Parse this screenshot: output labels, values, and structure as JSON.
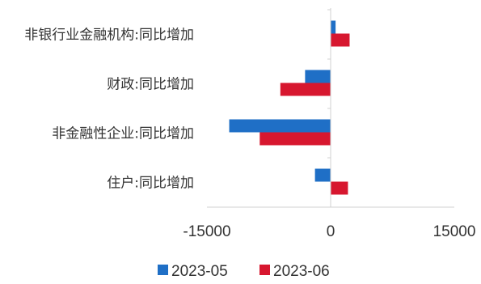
{
  "chart_data": {
    "type": "bar",
    "orientation": "horizontal",
    "categories": [
      "非银行业金融机构:同比增加",
      "财政:同比增加",
      "非金融性企业:同比增加",
      "住户:同比增加"
    ],
    "series": [
      {
        "name": "2023-05",
        "color": "#1f6fc6",
        "values": [
          600,
          -3100,
          -12300,
          -1900
        ]
      },
      {
        "name": "2023-06",
        "color": "#d7172f",
        "values": [
          2300,
          -6100,
          -8600,
          2100
        ]
      }
    ],
    "xlim": [
      -15000,
      15000
    ],
    "xticks": [
      -15000,
      0,
      15000
    ],
    "tick_labels": [
      "-15000",
      "0",
      "15000"
    ],
    "grid": false,
    "legend": "bottom"
  }
}
